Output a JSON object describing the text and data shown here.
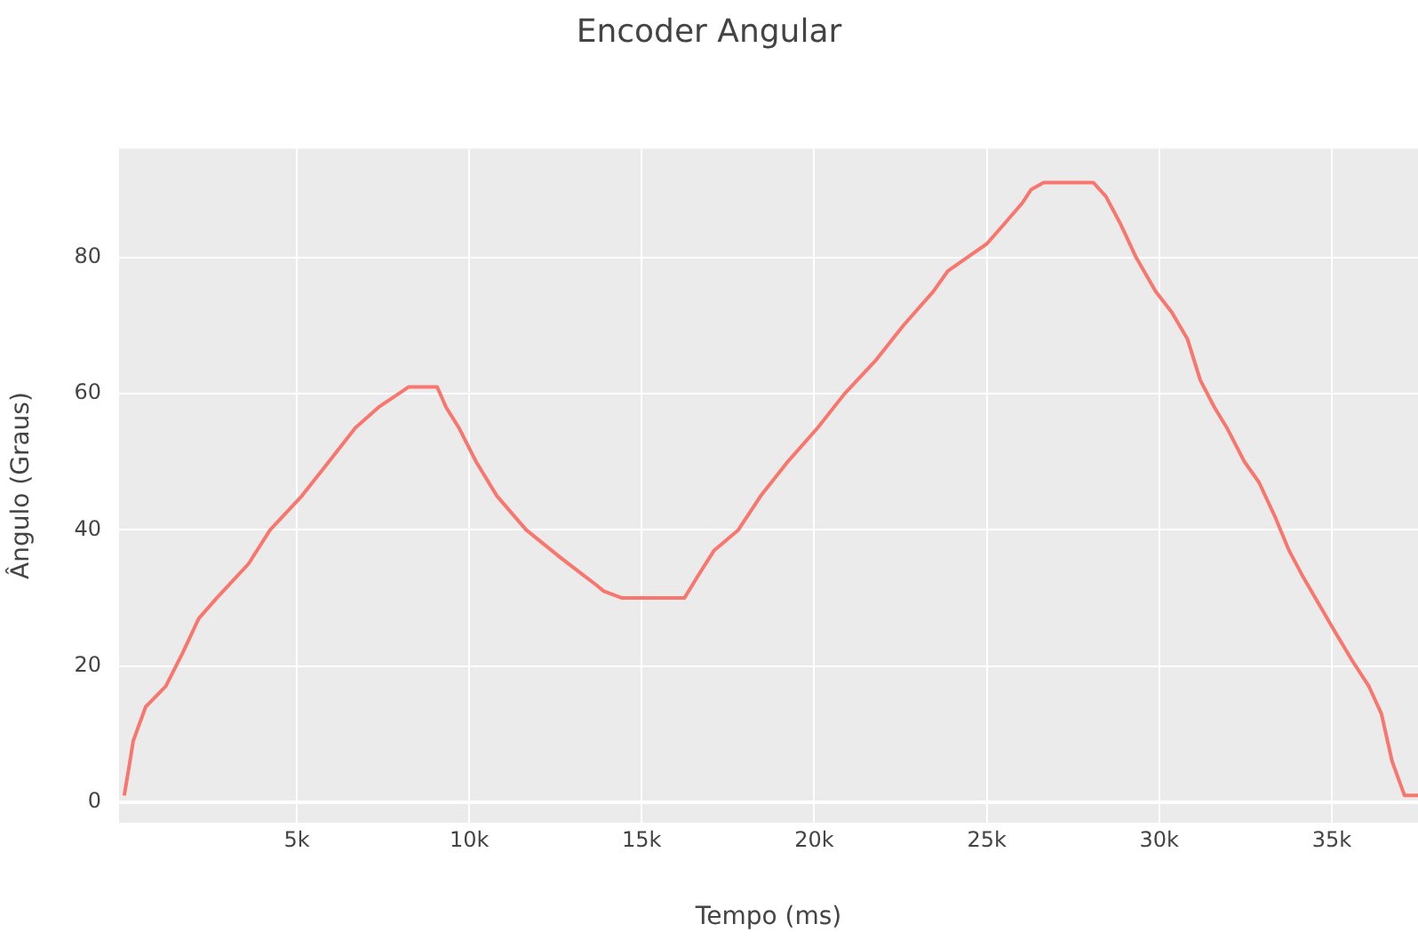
{
  "chart_data": {
    "type": "line",
    "title": "Encoder Angular",
    "xlabel": "Tempo (ms)",
    "ylabel": "Ângulo (Graus)",
    "x": [
      0,
      150,
      260,
      620,
      1200,
      1700,
      2160,
      2680,
      3600,
      4230,
      5150,
      5930,
      6700,
      7370,
      8250,
      9070,
      9330,
      9700,
      10200,
      10800,
      11650,
      12630,
      13140,
      13660,
      13900,
      14430,
      16240,
      16600,
      17100,
      17800,
      18450,
      19230,
      20100,
      20880,
      21800,
      22580,
      23450,
      23870,
      24430,
      25000,
      25520,
      26030,
      26290,
      26650,
      28090,
      28450,
      28870,
      29330,
      29900,
      30360,
      30820,
      31190,
      31600,
      31960,
      32470,
      32890,
      33350,
      33760,
      34180,
      34640,
      35100,
      35570,
      36080,
      36440,
      36750,
      37110,
      37500
    ],
    "series": [
      {
        "color": "#f8766d",
        "values": [
          1,
          5.5,
          9,
          14,
          17,
          22,
          27,
          30,
          35,
          40,
          45,
          50,
          55,
          58,
          61,
          61,
          58,
          55,
          50,
          45,
          40,
          36,
          34,
          32,
          31,
          30,
          30,
          33,
          37,
          40,
          45,
          50,
          55,
          60,
          65,
          70,
          75,
          78,
          80,
          82,
          85,
          88,
          90,
          91,
          91,
          89,
          85,
          80,
          75,
          72,
          68,
          62,
          58,
          55,
          50,
          47,
          42,
          37,
          33,
          29,
          25,
          21,
          17,
          13,
          6,
          1,
          1
        ]
      }
    ],
    "xlim": [
      -150,
      37500
    ],
    "ylim": [
      -3,
      96
    ],
    "xticks": [
      {
        "value": 5000,
        "label": "5k"
      },
      {
        "value": 10000,
        "label": "10k"
      },
      {
        "value": 15000,
        "label": "15k"
      },
      {
        "value": 20000,
        "label": "20k"
      },
      {
        "value": 25000,
        "label": "25k"
      },
      {
        "value": 30000,
        "label": "30k"
      },
      {
        "value": 35000,
        "label": "35k"
      }
    ],
    "yticks": [
      0,
      20,
      40,
      60,
      80
    ],
    "grid": true,
    "legend": false,
    "marker": "none",
    "line_style": "solid"
  }
}
